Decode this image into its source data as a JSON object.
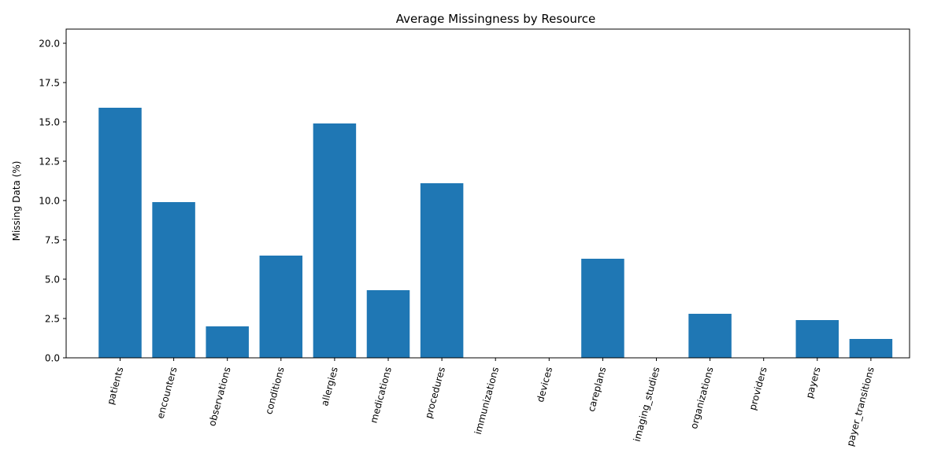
{
  "chart_data": {
    "type": "bar",
    "title": "Average Missingness by Resource",
    "xlabel": "",
    "ylabel": "Missing Data (%)",
    "categories": [
      "patients",
      "encounters",
      "observations",
      "conditions",
      "allergies",
      "medications",
      "procedures",
      "immunizations",
      "devices",
      "careplans",
      "imaging_studies",
      "organizations",
      "providers",
      "payers",
      "payer_transitions"
    ],
    "values": [
      15.9,
      9.9,
      2.0,
      6.5,
      14.9,
      4.3,
      11.1,
      0.0,
      0.0,
      6.3,
      0.0,
      2.8,
      0.0,
      2.4,
      1.2
    ],
    "ylim": [
      0,
      20.9
    ],
    "yticks": [
      0.0,
      2.5,
      5.0,
      7.5,
      10.0,
      12.5,
      15.0,
      17.5,
      20.0
    ],
    "ytick_labels": [
      "0.0",
      "2.5",
      "5.0",
      "7.5",
      "10.0",
      "12.5",
      "15.0",
      "17.5",
      "20.0"
    ],
    "bar_color": "#1f77b4",
    "grid": false
  }
}
